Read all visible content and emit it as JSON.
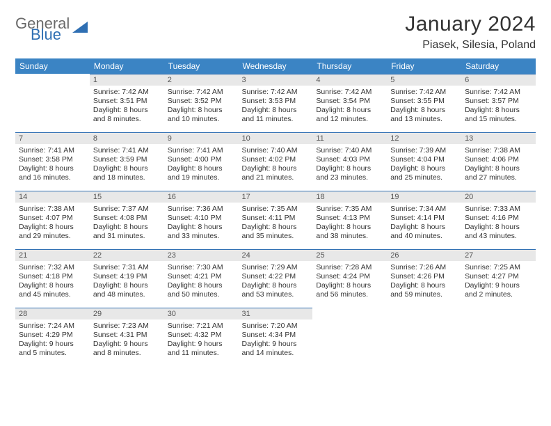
{
  "brand": {
    "word1": "General",
    "word2": "Blue",
    "word1_color": "#6a6a6a",
    "word2_color": "#2f6fb3"
  },
  "title": "January 2024",
  "location": "Piasek, Silesia, Poland",
  "colors": {
    "header_bg": "#3b84c4",
    "header_fg": "#ffffff",
    "daynum_bg": "#e8e8e8",
    "daynum_border": "#2f6fb3",
    "text": "#333333"
  },
  "fonts": {
    "title_size": 30,
    "location_size": 16,
    "weekday_size": 12,
    "cell_size": 10.5
  },
  "weekdays": [
    "Sunday",
    "Monday",
    "Tuesday",
    "Wednesday",
    "Thursday",
    "Friday",
    "Saturday"
  ],
  "grid": [
    [
      null,
      {
        "n": "1",
        "sr": "7:42 AM",
        "ss": "3:51 PM",
        "dl": "8 hours and 8 minutes."
      },
      {
        "n": "2",
        "sr": "7:42 AM",
        "ss": "3:52 PM",
        "dl": "8 hours and 10 minutes."
      },
      {
        "n": "3",
        "sr": "7:42 AM",
        "ss": "3:53 PM",
        "dl": "8 hours and 11 minutes."
      },
      {
        "n": "4",
        "sr": "7:42 AM",
        "ss": "3:54 PM",
        "dl": "8 hours and 12 minutes."
      },
      {
        "n": "5",
        "sr": "7:42 AM",
        "ss": "3:55 PM",
        "dl": "8 hours and 13 minutes."
      },
      {
        "n": "6",
        "sr": "7:42 AM",
        "ss": "3:57 PM",
        "dl": "8 hours and 15 minutes."
      }
    ],
    [
      {
        "n": "7",
        "sr": "7:41 AM",
        "ss": "3:58 PM",
        "dl": "8 hours and 16 minutes."
      },
      {
        "n": "8",
        "sr": "7:41 AM",
        "ss": "3:59 PM",
        "dl": "8 hours and 18 minutes."
      },
      {
        "n": "9",
        "sr": "7:41 AM",
        "ss": "4:00 PM",
        "dl": "8 hours and 19 minutes."
      },
      {
        "n": "10",
        "sr": "7:40 AM",
        "ss": "4:02 PM",
        "dl": "8 hours and 21 minutes."
      },
      {
        "n": "11",
        "sr": "7:40 AM",
        "ss": "4:03 PM",
        "dl": "8 hours and 23 minutes."
      },
      {
        "n": "12",
        "sr": "7:39 AM",
        "ss": "4:04 PM",
        "dl": "8 hours and 25 minutes."
      },
      {
        "n": "13",
        "sr": "7:38 AM",
        "ss": "4:06 PM",
        "dl": "8 hours and 27 minutes."
      }
    ],
    [
      {
        "n": "14",
        "sr": "7:38 AM",
        "ss": "4:07 PM",
        "dl": "8 hours and 29 minutes."
      },
      {
        "n": "15",
        "sr": "7:37 AM",
        "ss": "4:08 PM",
        "dl": "8 hours and 31 minutes."
      },
      {
        "n": "16",
        "sr": "7:36 AM",
        "ss": "4:10 PM",
        "dl": "8 hours and 33 minutes."
      },
      {
        "n": "17",
        "sr": "7:35 AM",
        "ss": "4:11 PM",
        "dl": "8 hours and 35 minutes."
      },
      {
        "n": "18",
        "sr": "7:35 AM",
        "ss": "4:13 PM",
        "dl": "8 hours and 38 minutes."
      },
      {
        "n": "19",
        "sr": "7:34 AM",
        "ss": "4:14 PM",
        "dl": "8 hours and 40 minutes."
      },
      {
        "n": "20",
        "sr": "7:33 AM",
        "ss": "4:16 PM",
        "dl": "8 hours and 43 minutes."
      }
    ],
    [
      {
        "n": "21",
        "sr": "7:32 AM",
        "ss": "4:18 PM",
        "dl": "8 hours and 45 minutes."
      },
      {
        "n": "22",
        "sr": "7:31 AM",
        "ss": "4:19 PM",
        "dl": "8 hours and 48 minutes."
      },
      {
        "n": "23",
        "sr": "7:30 AM",
        "ss": "4:21 PM",
        "dl": "8 hours and 50 minutes."
      },
      {
        "n": "24",
        "sr": "7:29 AM",
        "ss": "4:22 PM",
        "dl": "8 hours and 53 minutes."
      },
      {
        "n": "25",
        "sr": "7:28 AM",
        "ss": "4:24 PM",
        "dl": "8 hours and 56 minutes."
      },
      {
        "n": "26",
        "sr": "7:26 AM",
        "ss": "4:26 PM",
        "dl": "8 hours and 59 minutes."
      },
      {
        "n": "27",
        "sr": "7:25 AM",
        "ss": "4:27 PM",
        "dl": "9 hours and 2 minutes."
      }
    ],
    [
      {
        "n": "28",
        "sr": "7:24 AM",
        "ss": "4:29 PM",
        "dl": "9 hours and 5 minutes."
      },
      {
        "n": "29",
        "sr": "7:23 AM",
        "ss": "4:31 PM",
        "dl": "9 hours and 8 minutes."
      },
      {
        "n": "30",
        "sr": "7:21 AM",
        "ss": "4:32 PM",
        "dl": "9 hours and 11 minutes."
      },
      {
        "n": "31",
        "sr": "7:20 AM",
        "ss": "4:34 PM",
        "dl": "9 hours and 14 minutes."
      },
      null,
      null,
      null
    ]
  ],
  "labels": {
    "sunrise": "Sunrise:",
    "sunset": "Sunset:",
    "daylight": "Daylight:"
  }
}
